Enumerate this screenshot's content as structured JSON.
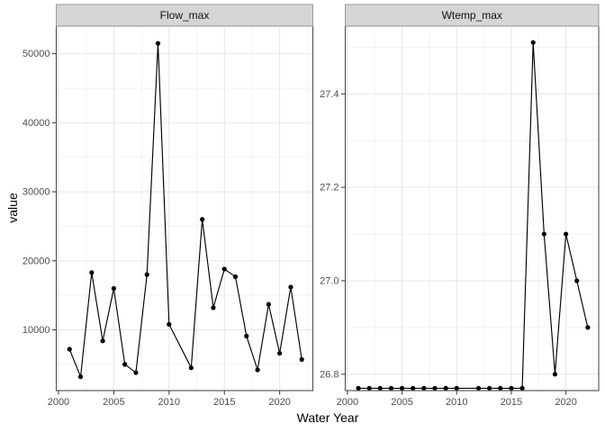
{
  "colors": {
    "background": "#ffffff",
    "strip_bg": "#d5d5d5",
    "strip_border": "#999999",
    "panel_border": "#4d4d4d",
    "grid_major": "#e6e6e6",
    "grid_minor": "#f3f3f3",
    "tick_mark": "#333333",
    "tick_label": "#4d4d4d",
    "strip_label": "#111111",
    "line": "#000000",
    "point": "#000000"
  },
  "chart_data": {
    "type": "line",
    "title": "",
    "xlabel": "Water Year",
    "ylabel": "value",
    "legend": "none",
    "grid": true,
    "facet_layout": "two side-by-side panels, free y scales, shared x axis",
    "x_axis": {
      "lim": [
        1999.8,
        2023.0
      ],
      "ticks": [
        2000,
        2005,
        2010,
        2015,
        2020
      ],
      "tick_labels": [
        "2000",
        "2005",
        "2010",
        "2015",
        "2020"
      ],
      "minor": [
        2002.5,
        2007.5,
        2012.5,
        2017.5,
        2022.5
      ]
    },
    "facets": [
      {
        "label": "Flow_max",
        "y_axis": {
          "lim": [
            1200,
            54000
          ],
          "ticks": [
            10000,
            20000,
            30000,
            40000,
            50000
          ],
          "tick_labels": [
            "10000",
            "20000",
            "30000",
            "40000",
            "50000"
          ],
          "minor": [
            5000,
            15000,
            25000,
            35000,
            45000
          ]
        },
        "points": {
          "x": [
            2001,
            2002,
            2003,
            2004,
            2005,
            2006,
            2007,
            2008,
            2009,
            2010,
            2012,
            2013,
            2014,
            2015,
            2016,
            2017,
            2018,
            2019,
            2020,
            2021,
            2022
          ],
          "y": [
            7200,
            3200,
            18300,
            8400,
            16000,
            5000,
            3800,
            18000,
            51500,
            10800,
            4500,
            26000,
            13200,
            18800,
            17700,
            9100,
            4200,
            13700,
            6600,
            16200,
            5700
          ]
        }
      },
      {
        "label": "Wtemp_max",
        "y_axis": {
          "lim": [
            26.765,
            27.545
          ],
          "ticks": [
            26.8,
            27.0,
            27.2,
            27.4
          ],
          "tick_labels": [
            "26.8",
            "27.0",
            "27.2",
            "27.4"
          ],
          "minor": [
            26.9,
            27.1,
            27.3,
            27.5
          ]
        },
        "points": {
          "x": [
            2001,
            2002,
            2003,
            2004,
            2005,
            2006,
            2007,
            2008,
            2009,
            2010,
            2012,
            2013,
            2014,
            2015,
            2016,
            2017,
            2018,
            2019,
            2020,
            2021,
            2022
          ],
          "y": [
            26.77,
            26.77,
            26.77,
            26.77,
            26.77,
            26.77,
            26.77,
            26.77,
            26.77,
            26.77,
            26.77,
            26.77,
            26.77,
            26.77,
            26.77,
            27.51,
            27.1,
            26.8,
            27.1,
            27.0,
            26.9
          ]
        }
      }
    ]
  }
}
